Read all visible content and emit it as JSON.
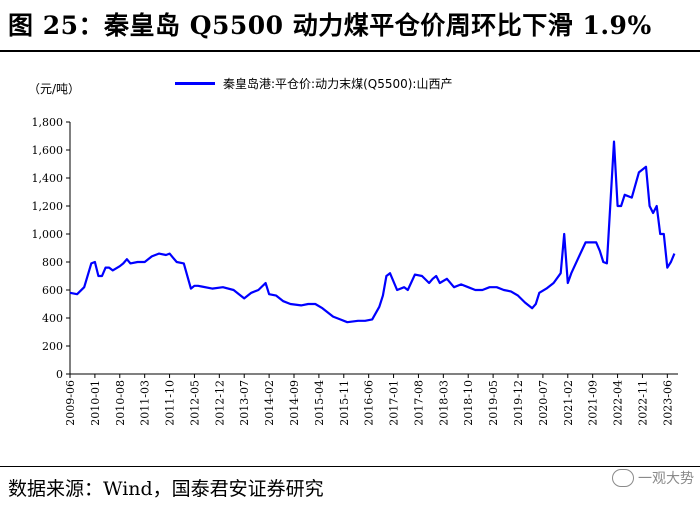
{
  "title": "图 25：秦皇岛 Q5500 动力煤平仓价周环比下滑 1.9%",
  "unit_label": "（元/吨）",
  "source": "数据来源：Wind，国泰君安证券研究",
  "watermark": "一观大势",
  "colors": {
    "series": "#0000ff",
    "axis": "#000000"
  },
  "chart_data": {
    "type": "line",
    "title": "",
    "xlabel": "",
    "ylabel": "（元/吨）",
    "ylim": [
      0,
      1800
    ],
    "yticks": [
      0,
      200,
      400,
      600,
      800,
      1000,
      1200,
      1400,
      1600,
      1800
    ],
    "ytick_labels": [
      "0",
      "200",
      "400",
      "600",
      "800",
      "1,000",
      "1,200",
      "1,400",
      "1,600",
      "1,800"
    ],
    "xlim": [
      "2009-06",
      "2023-09"
    ],
    "xtick_labels": [
      "2009-06",
      "2010-01",
      "2010-08",
      "2011-03",
      "2011-10",
      "2012-05",
      "2012-12",
      "2013-07",
      "2014-02",
      "2014-09",
      "2015-04",
      "2015-11",
      "2016-06",
      "2017-01",
      "2017-08",
      "2018-03",
      "2018-10",
      "2019-05",
      "2019-12",
      "2020-07",
      "2021-02",
      "2021-09",
      "2022-04",
      "2022-11",
      "2023-06"
    ],
    "legend_position": "top-center",
    "grid": false,
    "series": [
      {
        "name": "秦皇岛港:平仓价:动力末煤(Q5500):山西产",
        "x": [
          "2009-06",
          "2009-08",
          "2009-10",
          "2009-12",
          "2010-01",
          "2010-02",
          "2010-03",
          "2010-04",
          "2010-05",
          "2010-06",
          "2010-08",
          "2010-09",
          "2010-10",
          "2010-11",
          "2011-01",
          "2011-03",
          "2011-05",
          "2011-07",
          "2011-09",
          "2011-10",
          "2011-11",
          "2011-12",
          "2012-02",
          "2012-04",
          "2012-05",
          "2012-06",
          "2012-07",
          "2012-10",
          "2013-01",
          "2013-04",
          "2013-06",
          "2013-07",
          "2013-09",
          "2013-11",
          "2014-01",
          "2014-02",
          "2014-04",
          "2014-06",
          "2014-08",
          "2014-11",
          "2015-01",
          "2015-03",
          "2015-05",
          "2015-08",
          "2015-10",
          "2015-12",
          "2016-03",
          "2016-05",
          "2016-07",
          "2016-09",
          "2016-10",
          "2016-11",
          "2016-12",
          "2017-02",
          "2017-04",
          "2017-05",
          "2017-07",
          "2017-09",
          "2017-11",
          "2017-12",
          "2018-01",
          "2018-02",
          "2018-04",
          "2018-06",
          "2018-08",
          "2018-10",
          "2018-12",
          "2019-02",
          "2019-04",
          "2019-06",
          "2019-08",
          "2019-10",
          "2019-12",
          "2020-02",
          "2020-04",
          "2020-05",
          "2020-06",
          "2020-08",
          "2020-10",
          "2020-12",
          "2021-01",
          "2021-02",
          "2021-03",
          "2021-05",
          "2021-07",
          "2021-08",
          "2021-09",
          "2021-10",
          "2021-11",
          "2021-12",
          "2022-01",
          "2022-03",
          "2022-04",
          "2022-05",
          "2022-06",
          "2022-08",
          "2022-10",
          "2022-12",
          "2023-01",
          "2023-02",
          "2023-03",
          "2023-04",
          "2023-05",
          "2023-06",
          "2023-07",
          "2023-08"
        ],
        "y": [
          580,
          570,
          620,
          790,
          800,
          700,
          700,
          760,
          760,
          740,
          770,
          790,
          820,
          790,
          800,
          800,
          840,
          860,
          850,
          860,
          830,
          800,
          790,
          610,
          630,
          630,
          625,
          610,
          620,
          600,
          560,
          540,
          580,
          600,
          650,
          570,
          560,
          520,
          500,
          490,
          500,
          500,
          470,
          410,
          390,
          370,
          380,
          380,
          390,
          480,
          560,
          700,
          720,
          600,
          620,
          600,
          710,
          700,
          650,
          680,
          700,
          650,
          680,
          620,
          640,
          620,
          600,
          600,
          620,
          620,
          600,
          590,
          560,
          510,
          470,
          500,
          580,
          610,
          650,
          720,
          1000,
          650,
          720,
          830,
          940,
          940,
          940,
          940,
          880,
          800,
          790,
          1660,
          1200,
          1200,
          1280,
          1260,
          1440,
          1480,
          1200,
          1150,
          1200,
          1000,
          1000,
          760,
          800,
          860
        ]
      }
    ]
  }
}
